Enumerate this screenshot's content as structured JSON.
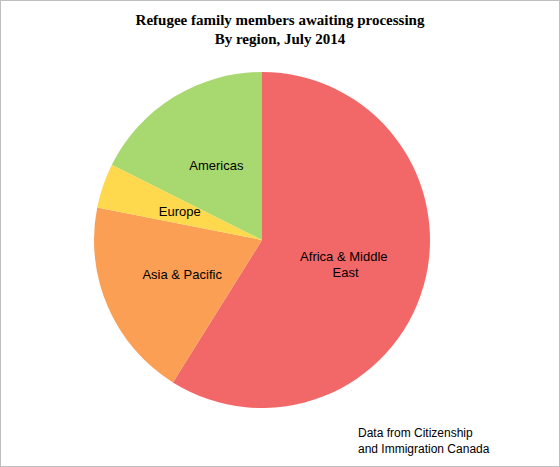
{
  "chart_data": {
    "type": "pie",
    "title": "Refugee family members awaiting processing",
    "subtitle": "By region, July 2014",
    "categories": [
      "Africa & Middle East",
      "Asia & Pacific",
      "Europe",
      "Americas"
    ],
    "values": [
      58.9,
      19.2,
      4.3,
      17.6
    ],
    "colors": [
      "#f26868",
      "#fb9f55",
      "#ffd94d",
      "#a8d870"
    ],
    "annotation": [
      "Data from Citizenship",
      "and Immigration Canada"
    ],
    "data_labels": false,
    "legend": false
  }
}
